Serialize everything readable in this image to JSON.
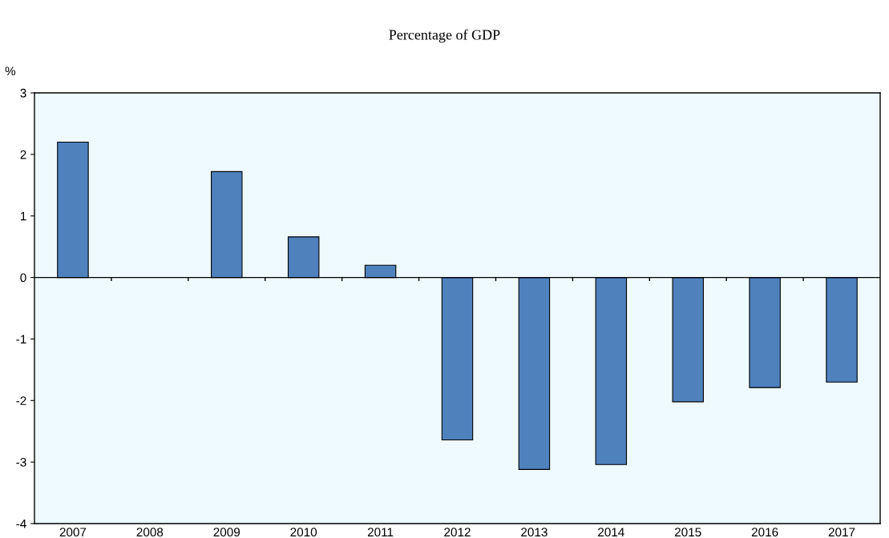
{
  "chart_data": {
    "type": "bar",
    "title": "Percentage of GDP",
    "ylabel": "%",
    "categories": [
      "2007",
      "2008",
      "2009",
      "2010",
      "2011",
      "2012",
      "2013",
      "2014",
      "2015",
      "2016",
      "2017"
    ],
    "values": [
      2.2,
      null,
      1.72,
      0.66,
      0.2,
      -2.64,
      -3.12,
      -3.04,
      -2.02,
      -1.79,
      -1.7
    ],
    "color": "#4f81bd",
    "ylim": [
      -4,
      3
    ],
    "yticks": [
      -4,
      -3,
      -2,
      -1,
      0,
      1,
      2,
      3
    ],
    "grid": false,
    "ref_lines": [
      {
        "axis": "y",
        "value": 0,
        "color": "#000000"
      }
    ]
  }
}
